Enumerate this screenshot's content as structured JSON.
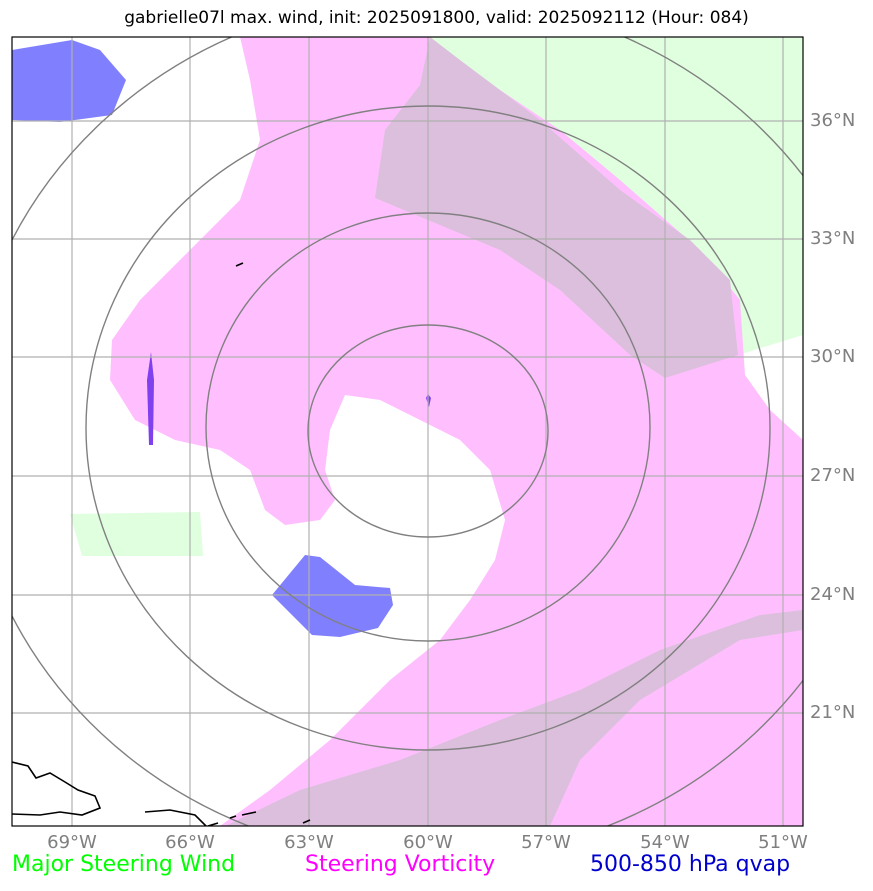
{
  "title": "gabrielle07l max. wind, init: 2025091800, valid: 2025092112 (Hour: 084)",
  "lat_labels": [
    "36°N",
    "33°N",
    "30°N",
    "27°N",
    "24°N",
    "21°N"
  ],
  "lon_labels": [
    "69°W",
    "66°W",
    "63°W",
    "60°W",
    "57°W",
    "54°W",
    "51°W"
  ],
  "legend": [
    {
      "label": "Major Steering Wind",
      "color": "#00ff00"
    },
    {
      "label": "Steering Vorticity",
      "color": "#ff00ff"
    },
    {
      "label": "500-850 hPa qvap",
      "color": "#0000cc"
    }
  ],
  "storm_center": {
    "lon": "60°W",
    "lat": "29°N"
  },
  "layer_colors": {
    "steering_wind": "#dfffdf",
    "vorticity": "#ffbfff",
    "overlap": "#dcbfdc",
    "qvap": "#8080ff",
    "range_rings": "#808080",
    "grid": "#b0b0b0"
  }
}
